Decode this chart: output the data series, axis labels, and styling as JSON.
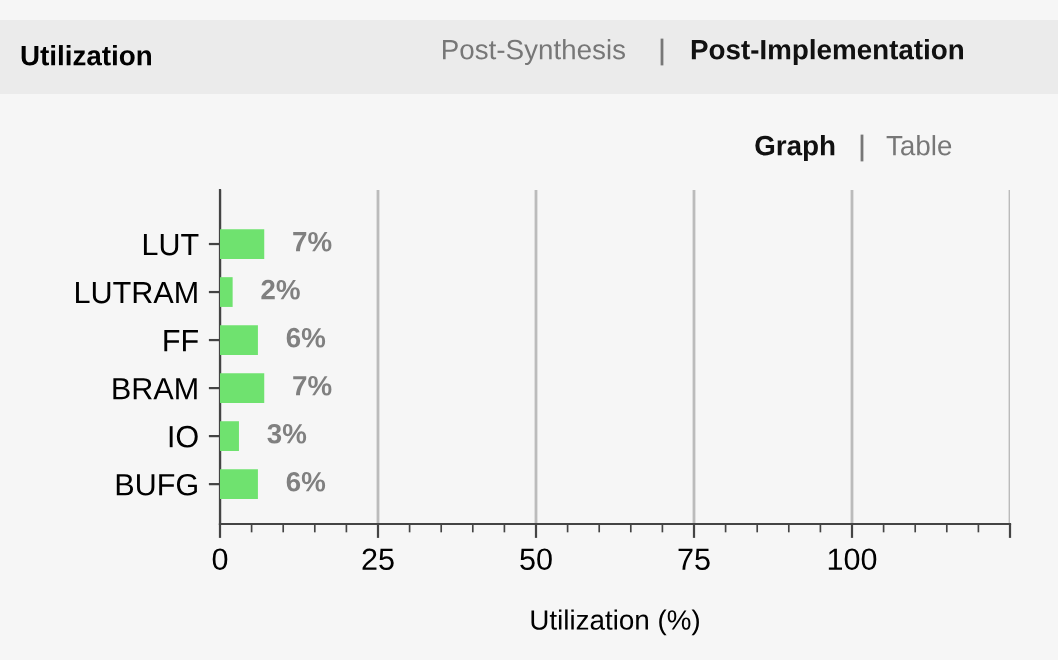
{
  "chart_data": {
    "type": "bar",
    "orientation": "horizontal",
    "title": "Utilization",
    "annotations": [
      "Post-Synthesis",
      "Post-Implementation",
      "Graph",
      "Table"
    ],
    "categories": [
      "LUT",
      "LUTRAM",
      "FF",
      "BRAM",
      "IO",
      "BUFG"
    ],
    "values": [
      7,
      2,
      6,
      7,
      3,
      6
    ],
    "value_labels": [
      "7%",
      "2%",
      "6%",
      "7%",
      "3%",
      "6%"
    ],
    "color": "#6fe26f",
    "xlabel": "Utilization (%)",
    "xlim": [
      0,
      125
    ],
    "xticks": [
      0,
      25,
      50,
      75,
      100,
      {
        "value": 125,
        "label": null
      }
    ],
    "grid": "x"
  }
}
